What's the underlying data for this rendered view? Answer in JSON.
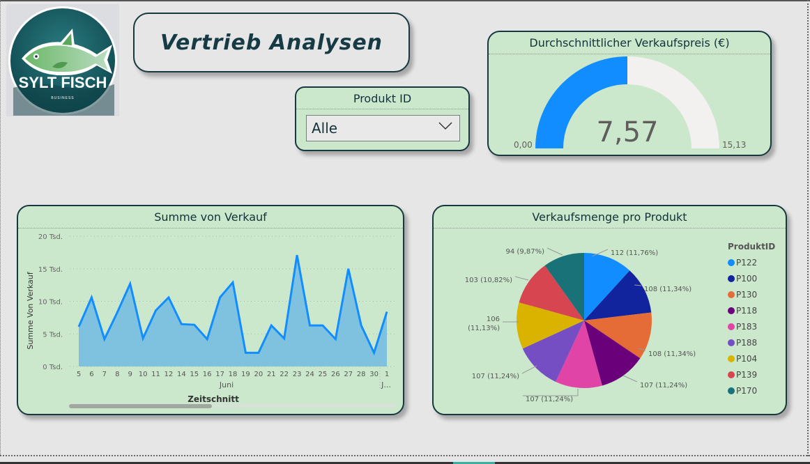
{
  "logo": {
    "brand": "SYLT FISCH",
    "sub": "BUSINESS"
  },
  "header": {
    "title": "Vertrieb Analysen"
  },
  "slicer": {
    "title": "Produkt ID",
    "selected": "Alle",
    "icon": "chevron-down-icon"
  },
  "gauge": {
    "title": "Durchschnittlicher Verkaufspreis (€)",
    "value": "7,57",
    "min": "0,00",
    "max": "15,13",
    "value_num": 7.57,
    "min_num": 0,
    "max_num": 15.13,
    "fill_color": "#118dff",
    "track_color": "#f2f1ef"
  },
  "line_chart": {
    "title": "Summe von Verkauf",
    "ylabel": "Summe Von Verkauf",
    "xlabel": "Zeitschnitt",
    "month_label": "Juni",
    "next_month_label": "J...",
    "y_ticks": [
      "0 Tsd.",
      "5 Tsd.",
      "10 Tsd.",
      "15 Tsd.",
      "20 Tsd."
    ],
    "line_color": "#118dff",
    "area_color": "#7fc2e0"
  },
  "pie_chart": {
    "title": "Verkaufsmenge pro Produkt",
    "legend_title": "ProduktID"
  },
  "chart_data": [
    {
      "type": "area",
      "title": "Summe von Verkauf",
      "xlabel": "Zeitschnitt",
      "ylabel": "Summe Von Verkauf",
      "x": [
        "5",
        "6",
        "7",
        "8",
        "9",
        "10",
        "11",
        "12",
        "14",
        "15",
        "16",
        "17",
        "18",
        "19",
        "20",
        "21",
        "22",
        "23",
        "24",
        "25",
        "26",
        "27",
        "28",
        "30",
        "1"
      ],
      "x_group_labels": [
        "Juni",
        "J..."
      ],
      "values": [
        6100,
        10600,
        4200,
        8300,
        12700,
        4300,
        8600,
        10600,
        6500,
        6400,
        4200,
        10600,
        12900,
        2100,
        2100,
        6300,
        4300,
        17100,
        6300,
        6300,
        4200,
        15000,
        6300,
        2100,
        8400
      ],
      "ylim": [
        0,
        20000
      ],
      "y_ticks": [
        "0 Tsd.",
        "5 Tsd.",
        "10 Tsd.",
        "15 Tsd.",
        "20 Tsd."
      ],
      "grid": true
    },
    {
      "type": "pie",
      "title": "Verkaufsmenge pro Produkt",
      "legend_title": "ProduktID",
      "legend_position": "right",
      "slices": [
        {
          "label": "P122",
          "value": 112,
          "pct": "11,76%",
          "color": "#118dff",
          "text": "112 (11,76%)"
        },
        {
          "label": "P100",
          "value": 108,
          "pct": "11,34%",
          "color": "#12239e",
          "text": "108 (11,34%)"
        },
        {
          "label": "P130",
          "value": 108,
          "pct": "11,34%",
          "color": "#e66c37",
          "text": "108 (11,34%)"
        },
        {
          "label": "P118",
          "value": 107,
          "pct": "11,24%",
          "color": "#6b007b",
          "text": "107 (11,24%)"
        },
        {
          "label": "P183",
          "value": 107,
          "pct": "11,24%",
          "color": "#e044a7",
          "text": "107 (11,24%)"
        },
        {
          "label": "P188",
          "value": 107,
          "pct": "11,24%",
          "color": "#744ec2",
          "text": "107 (11,24%)"
        },
        {
          "label": "P104",
          "value": 106,
          "pct": "11,13%",
          "color": "#d9b300",
          "text": "106 (11,13%)"
        },
        {
          "label": "P139",
          "value": 103,
          "pct": "10,82%",
          "color": "#d64550",
          "text": "103 (10,82%)"
        },
        {
          "label": "P170",
          "value": 94,
          "pct": "9,87%",
          "color": "#197278",
          "text": "94 (9,87%)"
        }
      ]
    }
  ]
}
